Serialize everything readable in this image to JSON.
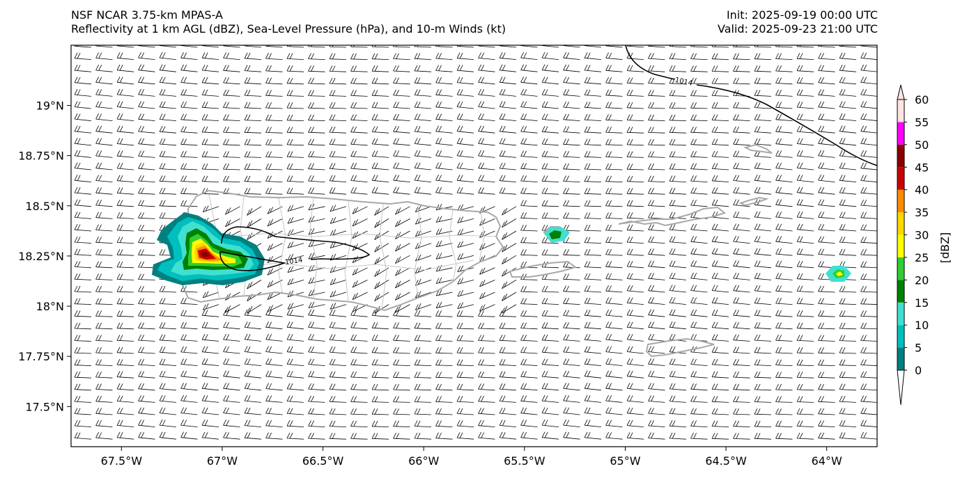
{
  "header": {
    "model": "NSF NCAR 3.75-km MPAS-A",
    "fields": "Reflectivity at 1 km AGL (dBZ), Sea-Level Pressure (hPa), and 10-m Winds (kt)",
    "init": "Init: 2025-09-19 00:00 UTC",
    "valid": "Valid: 2025-09-23 21:00 UTC"
  },
  "map": {
    "lon_range": [
      -67.75,
      -63.75
    ],
    "lat_range": [
      17.3,
      19.3
    ],
    "x_ticks": [
      {
        "lon": -67.5,
        "label": "67.5°W"
      },
      {
        "lon": -67.0,
        "label": "67°W"
      },
      {
        "lon": -66.5,
        "label": "66.5°W"
      },
      {
        "lon": -66.0,
        "label": "66°W"
      },
      {
        "lon": -65.5,
        "label": "65.5°W"
      },
      {
        "lon": -65.0,
        "label": "65°W"
      },
      {
        "lon": -64.5,
        "label": "64.5°W"
      },
      {
        "lon": -64.0,
        "label": "64°W"
      }
    ],
    "y_ticks": [
      {
        "lat": 19.0,
        "label": "19°N"
      },
      {
        "lat": 18.75,
        "label": "18.75°N"
      },
      {
        "lat": 18.5,
        "label": "18.5°N"
      },
      {
        "lat": 18.25,
        "label": "18.25°N"
      },
      {
        "lat": 18.0,
        "label": "18°N"
      },
      {
        "lat": 17.75,
        "label": "17.75°N"
      },
      {
        "lat": 17.5,
        "label": "17.5°N"
      }
    ],
    "isobars": [
      {
        "label": "1014",
        "where": "northeast corner"
      },
      {
        "label": "1014",
        "where": "western Puerto Rico"
      }
    ],
    "colors": {
      "coast": "#a8a8a8",
      "municipal": "#c4c4c4",
      "barb": "#000000",
      "isobar": "#000000"
    }
  },
  "colorbar": {
    "label": "[dBZ]",
    "ticks": [
      "0",
      "5",
      "10",
      "15",
      "20",
      "25",
      "30",
      "35",
      "40",
      "45",
      "50",
      "55",
      "60"
    ],
    "bins": [
      {
        "from": 0,
        "to": 5,
        "color": "#008080"
      },
      {
        "from": 5,
        "to": 10,
        "color": "#00bfbf"
      },
      {
        "from": 10,
        "to": 15,
        "color": "#40e0d0"
      },
      {
        "from": 15,
        "to": 20,
        "color": "#008000"
      },
      {
        "from": 20,
        "to": 25,
        "color": "#32cd32"
      },
      {
        "from": 25,
        "to": 30,
        "color": "#ffff00"
      },
      {
        "from": 30,
        "to": 35,
        "color": "#ffd700"
      },
      {
        "from": 35,
        "to": 40,
        "color": "#ff8c00"
      },
      {
        "from": 40,
        "to": 45,
        "color": "#cc0000"
      },
      {
        "from": 45,
        "to": 50,
        "color": "#8b0000"
      },
      {
        "from": 50,
        "to": 55,
        "color": "#ff00ff"
      },
      {
        "from": 55,
        "to": 60,
        "color": "#ffe4e1"
      }
    ]
  }
}
